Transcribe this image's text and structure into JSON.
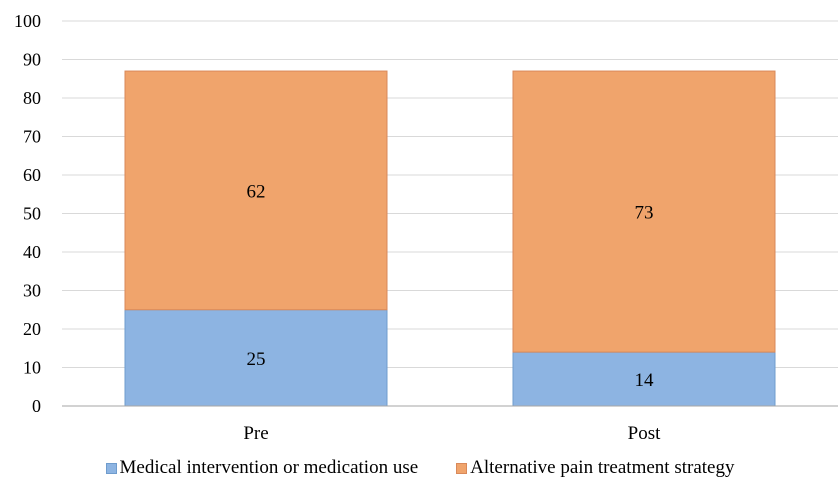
{
  "chart_data": {
    "type": "bar",
    "stacked": true,
    "categories": [
      "Pre",
      "Post"
    ],
    "series": [
      {
        "name": "Medical intervention or medication use",
        "values": [
          25,
          14
        ],
        "color": "#8db4e2",
        "border": "#6f9ccd"
      },
      {
        "name": "Alternative pain treatment strategy",
        "values": [
          62,
          73
        ],
        "color": "#f0a46c",
        "border": "#d9895a"
      }
    ],
    "ylim": [
      0,
      100
    ],
    "yticks": [
      0,
      10,
      20,
      30,
      40,
      50,
      60,
      70,
      80,
      90,
      100
    ],
    "grid": true,
    "gridColor": "#d9d9d9",
    "axisColor": "#a6a6a6",
    "data_labels": true,
    "legend": "bottom"
  }
}
